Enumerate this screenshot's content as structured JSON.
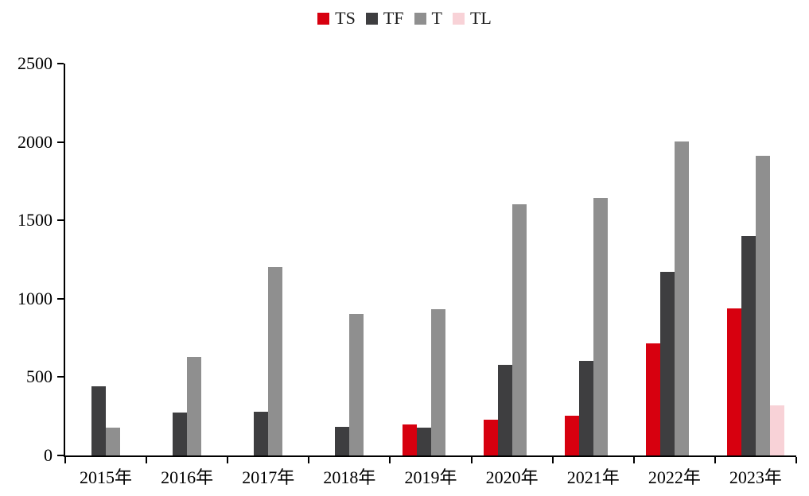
{
  "chart_data": {
    "type": "bar",
    "title": "",
    "xlabel": "",
    "ylabel": "",
    "categories": [
      "2015年",
      "2016年",
      "2017年",
      "2018年",
      "2019年",
      "2020年",
      "2021年",
      "2022年",
      "2023年"
    ],
    "series": [
      {
        "name": "TS",
        "color": "#d7000f",
        "values": [
          0,
          0,
          0,
          0,
          200,
          230,
          255,
          715,
          940
        ]
      },
      {
        "name": "TF",
        "color": "#3e3e40",
        "values": [
          440,
          275,
          280,
          185,
          180,
          580,
          605,
          1170,
          1400
        ]
      },
      {
        "name": "T",
        "color": "#8f8f8f",
        "values": [
          175,
          630,
          1200,
          905,
          935,
          1600,
          1645,
          2005,
          1910
        ]
      },
      {
        "name": "TL",
        "color": "#f8d2d7",
        "values": [
          0,
          0,
          0,
          0,
          0,
          0,
          0,
          0,
          320
        ]
      }
    ],
    "ylim": [
      0,
      2500
    ],
    "yticks": [
      0,
      500,
      1000,
      1500,
      2000,
      2500
    ],
    "grid": false,
    "legend_position": "top-center",
    "axis_color": "#000000",
    "background_color": "#ffffff"
  }
}
